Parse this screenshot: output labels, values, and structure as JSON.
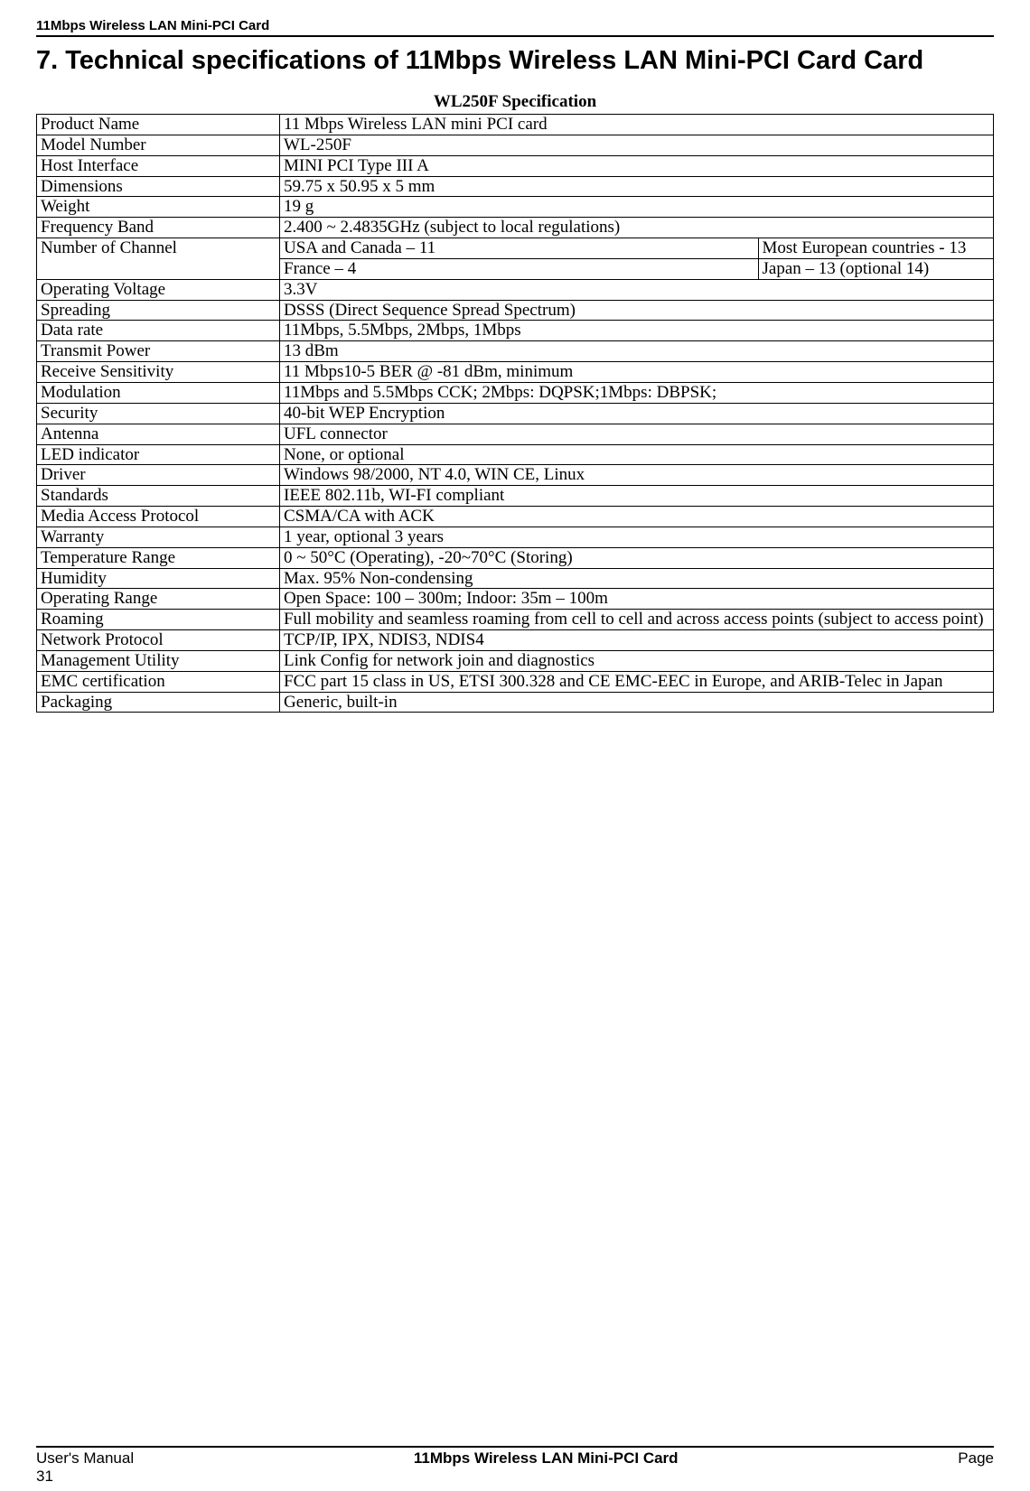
{
  "header": {
    "runningHead": "11Mbps Wireless LAN Mini-PCI Card",
    "sectionTitle": "7. Technical specifications of 11Mbps Wireless LAN Mini-PCI Card Card",
    "tableTitle": "WL250F Specification"
  },
  "colors": {
    "text": "#000000",
    "background": "#ffffff",
    "border": "#000000"
  },
  "typography": {
    "bodyFont": "Times New Roman, serif",
    "headerFont": "Arial, Helvetica, sans-serif",
    "bodySize": 19,
    "titleSize": 29,
    "footerSize": 17
  },
  "table": {
    "attrColWidthPx": 260,
    "rows": [
      {
        "type": "simple",
        "attr": "Product Name",
        "val": " 11 Mbps Wireless LAN mini PCI card"
      },
      {
        "type": "simple",
        "attr": "Model Number",
        "val": " WL-250F"
      },
      {
        "type": "simple",
        "attr": "Host Interface",
        "val": " MINI PCI Type III A"
      },
      {
        "type": "simple",
        "attr": "Dimensions",
        "val": " 59.75 x 50.95 x 5 mm"
      },
      {
        "type": "simple",
        "attr": "Weight",
        "val": " 19 g"
      },
      {
        "type": "simple",
        "attr": "Frequency Band",
        "val": " 2.400 ~ 2.4835GHz (subject to local regulations)"
      },
      {
        "type": "channel4",
        "attr": "Number of Channel",
        "c1": " USA and Canada – 11",
        "c2": " Most European countries - 13",
        "c3": " France – 4",
        "c4": " Japan – 13 (optional 14)"
      },
      {
        "type": "simple",
        "attr": "Operating Voltage",
        "val": " 3.3V"
      },
      {
        "type": "simple",
        "attr": "Spreading",
        "val": "DSSS (Direct Sequence Spread Spectrum)"
      },
      {
        "type": "simple",
        "attr": "Data rate",
        "val": "11Mbps, 5.5Mbps, 2Mbps, 1Mbps"
      },
      {
        "type": "simple",
        "attr": "Transmit Power",
        "val": " 13 dBm"
      },
      {
        "type": "simple",
        "attr": "Receive Sensitivity",
        "val": "11 Mbps10-5 BER @ -81 dBm, minimum"
      },
      {
        "type": "simple",
        "attr": "Modulation",
        "val": "11Mbps and 5.5Mbps CCK;  2Mbps: DQPSK;1Mbps: DBPSK;"
      },
      {
        "type": "simple",
        "attr": "Security",
        "val": "40-bit WEP Encryption"
      },
      {
        "type": "simple",
        "attr": "Antenna",
        "val": "UFL connector"
      },
      {
        "type": "simple",
        "attr": "LED indicator",
        "val": "None, or optional"
      },
      {
        "type": "simple",
        "attr": "Driver",
        "val": "Windows 98/2000, NT 4.0, WIN CE, Linux"
      },
      {
        "type": "simple",
        "attr": "Standards",
        "val": "IEEE 802.11b, WI-FI compliant"
      },
      {
        "type": "simple",
        "attr": "Media Access Protocol",
        "val": "CSMA/CA with ACK"
      },
      {
        "type": "simple",
        "attr": "Warranty",
        "val": "1 year, optional 3 years"
      },
      {
        "type": "simple",
        "attr": "Temperature Range",
        "val": "0 ~ 50°C (Operating), -20~70°C (Storing)"
      },
      {
        "type": "simple",
        "attr": "Humidity",
        "val": "Max. 95% Non-condensing"
      },
      {
        "type": "simple",
        "attr": "Operating Range",
        "val": "Open Space: 100 – 300m; Indoor: 35m – 100m"
      },
      {
        "type": "simple",
        "attr": "Roaming",
        "val": "Full mobility and seamless roaming from cell to cell and across access points (subject to access point)",
        "justify": true
      },
      {
        "type": "simple",
        "attr": "Network Protocol",
        "val": "TCP/IP, IPX, NDIS3, NDIS4"
      },
      {
        "type": "simple",
        "attr": "Management Utility",
        "val": "Link Config for network join and diagnostics"
      },
      {
        "type": "simple",
        "attr": "EMC certification",
        "val": "FCC part 15 class in US, ETSI 300.328 and CE EMC-EEC in Europe,  and ARIB-Telec in Japan",
        "justify": true
      },
      {
        "type": "simple",
        "attr": "Packaging",
        "val": "Generic, built-in"
      }
    ]
  },
  "footer": {
    "left": "User's Manual",
    "center": "11Mbps Wireless LAN Mini-PCI Card",
    "right": "Page",
    "pageNumber": "31"
  }
}
